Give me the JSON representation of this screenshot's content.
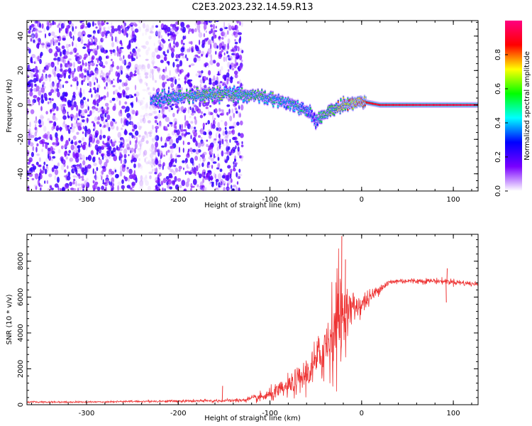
{
  "title": "C2E3.2023.232.14.59.R13",
  "chart_data": [
    {
      "type": "heatmap",
      "xlabel": "Height of straight line (km)",
      "ylabel": "Frequency (Hz)",
      "xlim": [
        -365,
        127
      ],
      "ylim": [
        -50,
        49
      ],
      "x_ticks": [
        -300,
        -200,
        -100,
        0,
        100
      ],
      "y_ticks": [
        -40,
        -20,
        0,
        20,
        40
      ],
      "colorbar": {
        "label": "Normalized spectral amplitude",
        "range": [
          0,
          1
        ],
        "ticks": [
          0.0,
          0.2,
          0.4,
          0.6,
          0.8
        ],
        "tick_labels": [
          "0.0",
          "0.2",
          "0.4",
          "0.6",
          "0.8"
        ],
        "colors": [
          "#ffffff",
          "#7a00ff",
          "#0000ff",
          "#00ffff",
          "#00ff00",
          "#ffff00",
          "#ff0000",
          "#ff0080"
        ]
      },
      "ridge": {
        "x": [
          -230,
          -210,
          -190,
          -170,
          -150,
          -130,
          -110,
          -95,
          -80,
          -65,
          -55,
          -50,
          -45,
          -40,
          -30,
          -20,
          -10,
          0,
          20,
          60,
          100,
          127
        ],
        "y": [
          3,
          4,
          5,
          6,
          6,
          6,
          5,
          3,
          1,
          -2,
          -5,
          -10,
          -8,
          -5,
          -2,
          0,
          1,
          2,
          0,
          0,
          0,
          0
        ],
        "amplitude": [
          0.4,
          0.45,
          0.5,
          0.55,
          0.55,
          0.5,
          0.5,
          0.5,
          0.45,
          0.45,
          0.4,
          0.35,
          0.45,
          0.55,
          0.6,
          0.7,
          0.8,
          0.85,
          0.9,
          0.92,
          0.92,
          0.92
        ]
      },
      "noise_region": {
        "x_start": -365,
        "x_end": -130,
        "amplitude": 0.15
      }
    },
    {
      "type": "line",
      "xlabel": "Height of straight line (km)",
      "ylabel": "SNR (10 * v/v)",
      "xlim": [
        -365,
        127
      ],
      "ylim": [
        0,
        9500
      ],
      "x_ticks": [
        -300,
        -200,
        -100,
        0,
        100
      ],
      "y_ticks": [
        0,
        2000,
        4000,
        6000,
        8000
      ],
      "color": "#ee3333",
      "series": [
        {
          "x": [
            -365,
            -300,
            -250,
            -200,
            -150,
            -130,
            -110,
            -100,
            -90,
            -80,
            -70,
            -60,
            -50,
            -40,
            -35,
            -30,
            -25,
            -20,
            -15,
            -10,
            -5,
            0,
            10,
            20,
            30,
            40,
            60,
            80,
            100,
            127
          ],
          "y": [
            150,
            150,
            180,
            200,
            220,
            250,
            400,
            550,
            750,
            1000,
            1300,
            1700,
            2300,
            3200,
            3800,
            4400,
            4800,
            5000,
            5200,
            5400,
            5500,
            5600,
            6000,
            6500,
            6800,
            6900,
            6900,
            6900,
            6850,
            6700
          ],
          "noise_amplitude": [
            40,
            40,
            50,
            60,
            80,
            100,
            250,
            350,
            450,
            550,
            700,
            900,
            1200,
            1800,
            2200,
            2500,
            3200,
            1500,
            1200,
            900,
            700,
            600,
            400,
            250,
            180,
            150,
            150,
            150,
            150,
            150
          ]
        }
      ],
      "annotations": [
        {
          "x": -22,
          "y": 9400
        },
        {
          "x": -18,
          "y": 8100
        },
        {
          "x": -152,
          "y": 1050
        },
        {
          "x": 93,
          "y": 7600
        },
        {
          "x": 92,
          "y": 5700
        }
      ]
    }
  ]
}
